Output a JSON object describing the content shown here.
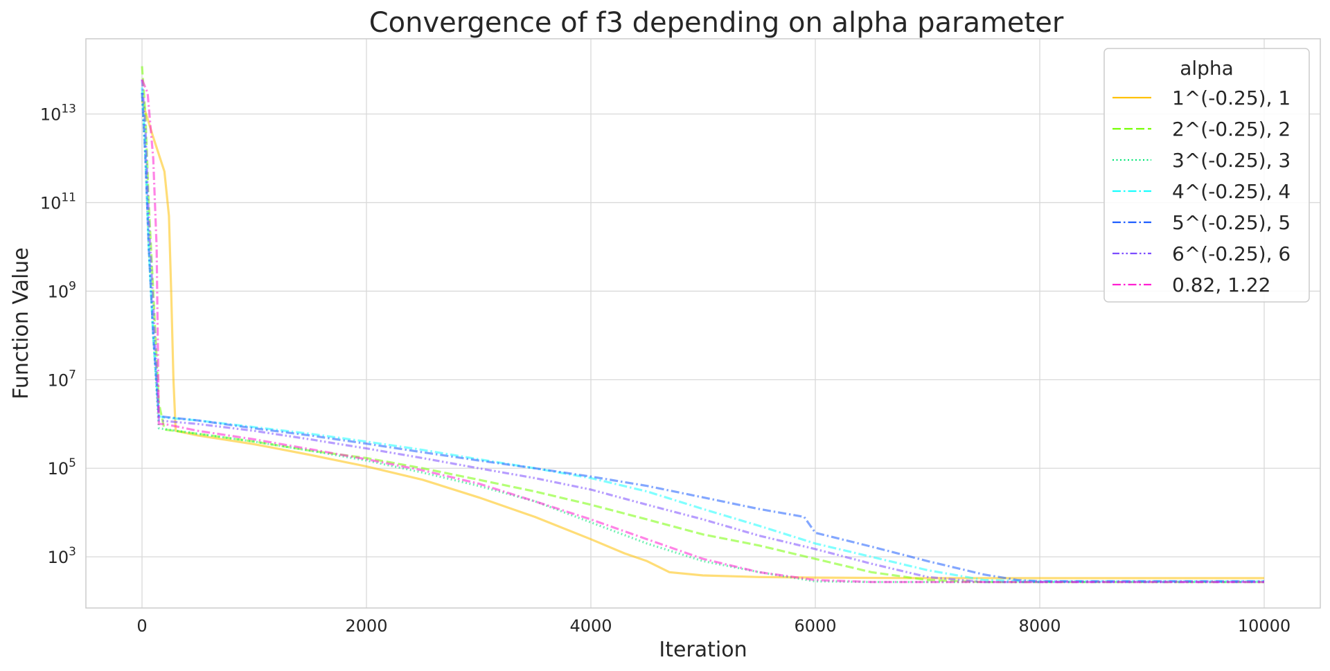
{
  "chart_data": {
    "type": "line",
    "title": "Convergence of f3  depending on alpha parameter",
    "xlabel": "Iteration",
    "ylabel": "Function Value",
    "xlim": [
      -500,
      10500
    ],
    "ylim": [
      70,
      500000000000000
    ],
    "y_scale": "log",
    "xticks": [
      0,
      2000,
      4000,
      6000,
      8000,
      10000
    ],
    "yticks": [
      {
        "value": 1000,
        "base": "10",
        "exp": "3"
      },
      {
        "value": 100000,
        "base": "10",
        "exp": "5"
      },
      {
        "value": 10000000,
        "base": "10",
        "exp": "7"
      },
      {
        "value": 1000000000,
        "base": "10",
        "exp": "9"
      },
      {
        "value": 100000000000,
        "base": "10",
        "exp": "11"
      },
      {
        "value": 10000000000000,
        "base": "10",
        "exp": "13"
      }
    ],
    "grid": true,
    "legend": {
      "title": "alpha",
      "position": "top-right"
    },
    "series": [
      {
        "name": "1^(-0.25), 1",
        "color": "#ffc107",
        "dash": "solid",
        "x": [
          0,
          100,
          200,
          240,
          260,
          280,
          300,
          500,
          1000,
          1500,
          2000,
          2500,
          3000,
          3500,
          4000,
          4300,
          4500,
          4700,
          5000,
          5500,
          6000,
          7000,
          10000
        ],
        "y": [
          20000000000000,
          3000000000000,
          500000000000,
          50000000000,
          1000000000,
          10000000,
          700000,
          550000,
          350000,
          200000,
          110000,
          55000,
          22000,
          8000,
          2500,
          1200,
          800,
          450,
          380,
          350,
          340,
          330,
          330
        ]
      },
      {
        "name": "2^(-0.25), 2",
        "color": "#76ff03",
        "dash": "dashed",
        "x": [
          0,
          30,
          60,
          100,
          150,
          200,
          500,
          1000,
          1500,
          2000,
          2500,
          3000,
          3500,
          4000,
          4500,
          5000,
          5500,
          6000,
          6500,
          7000,
          7500,
          10000
        ],
        "y": [
          120000000000000,
          10000000000000,
          100000000000,
          1000000000,
          3000000,
          750000,
          600000,
          400000,
          250000,
          170000,
          100000,
          55000,
          30000,
          15000,
          7000,
          3200,
          1800,
          900,
          450,
          300,
          270,
          270
        ]
      },
      {
        "name": "3^(-0.25), 3",
        "color": "#00e676",
        "dash": "dotted",
        "x": [
          0,
          30,
          60,
          100,
          150,
          500,
          1000,
          1500,
          2000,
          2500,
          3000,
          3500,
          4000,
          4500,
          5000,
          5500,
          6000,
          6500,
          10000
        ],
        "y": [
          30000000000000,
          1000000000000,
          10000000000,
          100000000,
          800000,
          600000,
          400000,
          250000,
          150000,
          80000,
          40000,
          18000,
          6000,
          2000,
          800,
          450,
          280,
          270,
          270
        ]
      },
      {
        "name": "4^(-0.25), 4",
        "color": "#18ffff",
        "dash": "dashdot",
        "x": [
          0,
          30,
          60,
          100,
          150,
          200,
          500,
          1000,
          1500,
          2000,
          2500,
          3000,
          3500,
          4000,
          4500,
          5000,
          5500,
          6000,
          6500,
          7000,
          7500,
          8000,
          10000
        ],
        "y": [
          40000000000000,
          2000000000000,
          10000000000,
          100000000,
          1500000,
          1400000,
          1200000,
          850000,
          600000,
          400000,
          260000,
          160000,
          100000,
          60000,
          30000,
          12000,
          5000,
          2000,
          1000,
          500,
          300,
          280,
          280
        ]
      },
      {
        "name": "5^(-0.25), 5",
        "color": "#1e5eff",
        "dash": "dashdot",
        "x": [
          0,
          30,
          60,
          100,
          150,
          200,
          500,
          1000,
          1500,
          2000,
          2500,
          3000,
          3500,
          4000,
          4500,
          5000,
          5500,
          5900,
          6000,
          6500,
          7000,
          7500,
          7800,
          8000,
          10000
        ],
        "y": [
          30000000000000,
          1000000000000,
          10000000000,
          100000000,
          1500000,
          1450000,
          1200000,
          800000,
          550000,
          360000,
          230000,
          150000,
          100000,
          65000,
          40000,
          22000,
          12000,
          8000,
          3500,
          1700,
          800,
          400,
          300,
          280,
          280
        ]
      },
      {
        "name": "6^(-0.25), 6",
        "color": "#7c4dff",
        "dash": "dashdotdot",
        "x": [
          0,
          30,
          60,
          100,
          150,
          500,
          1000,
          1500,
          2000,
          2500,
          3000,
          3500,
          4000,
          4500,
          5000,
          5500,
          6000,
          6500,
          7000,
          7500,
          10000
        ],
        "y": [
          60000000000000,
          5000000000000,
          50000000000,
          500000000,
          1200000,
          1000000,
          700000,
          450000,
          280000,
          170000,
          100000,
          60000,
          33000,
          15000,
          7000,
          3000,
          1500,
          700,
          350,
          270,
          270
        ]
      },
      {
        "name": "0.82, 1.22",
        "color": "#ff1fd1",
        "dash": "dashdot",
        "x": [
          0,
          50,
          100,
          130,
          150,
          200,
          500,
          1000,
          1500,
          2000,
          2500,
          3000,
          3500,
          4000,
          4500,
          5000,
          5500,
          6000,
          6500,
          10000
        ],
        "y": [
          60000000000000,
          30000000000000,
          1000000000000,
          10000000000,
          1000000,
          1000000,
          700000,
          450000,
          270000,
          160000,
          90000,
          45000,
          18000,
          7000,
          2500,
          900,
          450,
          300,
          270,
          270
        ]
      }
    ]
  }
}
